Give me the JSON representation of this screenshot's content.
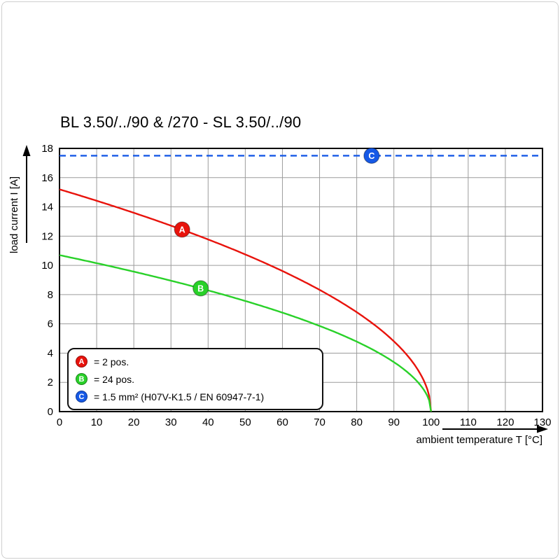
{
  "chart_data": {
    "type": "line",
    "title": "BL 3.50/../90 & /270 - SL 3.50/../90",
    "xlabel": "ambient temperature T [°C]",
    "ylabel": "load current I [A]",
    "xlim": [
      0,
      130
    ],
    "ylim": [
      0,
      18
    ],
    "x_ticks": [
      0,
      10,
      20,
      30,
      40,
      50,
      60,
      70,
      80,
      90,
      100,
      110,
      120,
      130
    ],
    "y_ticks": [
      0,
      2,
      4,
      6,
      8,
      10,
      12,
      14,
      16,
      18
    ],
    "grid": true,
    "legend_position": "inside-bottom-left",
    "series": [
      {
        "id": "A",
        "label": "= 2 pos.",
        "color": "#e8130c",
        "style": "solid",
        "marker": {
          "t": 33,
          "i": 12.45
        },
        "model": {
          "kind": "sqrt_derating",
          "i0": 15.2,
          "t_zero": 100
        },
        "points": [
          [
            0,
            15.2
          ],
          [
            10,
            14.42
          ],
          [
            20,
            13.6
          ],
          [
            30,
            12.72
          ],
          [
            40,
            11.77
          ],
          [
            50,
            10.75
          ],
          [
            60,
            9.61
          ],
          [
            70,
            8.33
          ],
          [
            80,
            6.8
          ],
          [
            90,
            4.81
          ],
          [
            95,
            3.4
          ],
          [
            99,
            1.52
          ],
          [
            100,
            0
          ]
        ]
      },
      {
        "id": "B",
        "label": "= 24 pos.",
        "color": "#29d129",
        "style": "solid",
        "marker": {
          "t": 38,
          "i": 8.43
        },
        "model": {
          "kind": "sqrt_derating",
          "i0": 10.7,
          "t_zero": 100
        },
        "points": [
          [
            0,
            10.7
          ],
          [
            10,
            10.15
          ],
          [
            20,
            9.57
          ],
          [
            30,
            8.95
          ],
          [
            40,
            8.29
          ],
          [
            50,
            7.57
          ],
          [
            60,
            6.77
          ],
          [
            70,
            5.86
          ],
          [
            80,
            4.79
          ],
          [
            90,
            3.38
          ],
          [
            95,
            2.39
          ],
          [
            99,
            1.07
          ],
          [
            100,
            0
          ]
        ]
      },
      {
        "id": "C",
        "label": "= 1.5 mm² (H07V-K1.5 / EN 60947-7-1)",
        "color": "#1659e6",
        "style": "dashed",
        "marker": {
          "t": 84,
          "i": 17.5
        },
        "model": {
          "kind": "hline",
          "value": 17.5
        },
        "points": [
          [
            0,
            17.5
          ],
          [
            130,
            17.5
          ]
        ]
      }
    ]
  }
}
